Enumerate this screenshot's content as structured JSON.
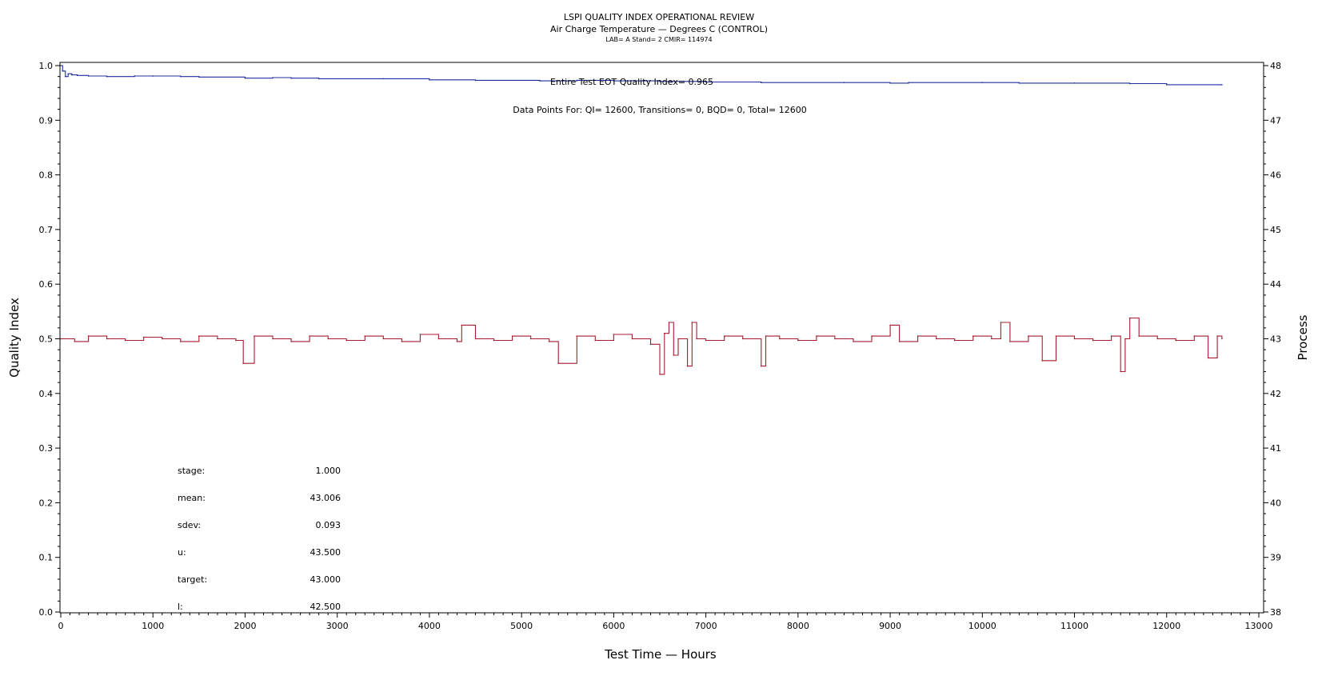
{
  "chart_data": {
    "type": "line",
    "title": "LSPI QUALITY INDEX OPERATIONAL REVIEW",
    "subtitle": "Air Charge Temperature — Degrees C (CONTROL)",
    "subtitle2": "LAB= A Stand= 2 CMIR= 114974",
    "xlabel": "Test Time — Hours",
    "ylabel": "Quality Index",
    "y2label": "Process",
    "xlim": [
      0,
      13000
    ],
    "ylim": [
      0.0,
      1.0
    ],
    "y2lim": [
      38,
      48
    ],
    "x_ticks": [
      "0",
      "1000",
      "2000",
      "3000",
      "4000",
      "5000",
      "6000",
      "7000",
      "8000",
      "9000",
      "10000",
      "11000",
      "12000",
      "13000"
    ],
    "y_ticks": [
      "0.0",
      "0.1",
      "0.2",
      "0.3",
      "0.4",
      "0.5",
      "0.6",
      "0.7",
      "0.8",
      "0.9",
      "1.0"
    ],
    "y2_ticks": [
      "38",
      "39",
      "40",
      "41",
      "42",
      "43",
      "44",
      "45",
      "46",
      "47",
      "48"
    ],
    "annotations": {
      "eot": "Entire Test EOT Quality Index=   0.965",
      "points": "Data Points For: QI= 12600, Transitions=      0, BQD=      0, Total= 12600"
    },
    "stats": [
      {
        "label": "stage:",
        "value": "1.000"
      },
      {
        "label": "mean:",
        "value": "43.006"
      },
      {
        "label": "sdev:",
        "value": "0.093"
      },
      {
        "label": "u:",
        "value": "43.500"
      },
      {
        "label": "target:",
        "value": "43.000"
      },
      {
        "label": "l:",
        "value": "42.500"
      }
    ],
    "series": [
      {
        "axis": "left",
        "color": "#1f2f9e",
        "x": [
          0,
          20,
          50,
          80,
          120,
          180,
          300,
          500,
          800,
          1000,
          1300,
          1500,
          2000,
          2300,
          2500,
          2800,
          3500,
          4000,
          4500,
          5200,
          5600,
          6000,
          6500,
          7000,
          7600,
          8500,
          9000,
          9200,
          10000,
          10400,
          11000,
          11600,
          12000,
          12600
        ],
        "values": [
          1.0,
          0.99,
          0.98,
          0.985,
          0.983,
          0.982,
          0.981,
          0.98,
          0.981,
          0.981,
          0.98,
          0.979,
          0.977,
          0.978,
          0.977,
          0.976,
          0.976,
          0.974,
          0.973,
          0.972,
          0.973,
          0.972,
          0.971,
          0.97,
          0.969,
          0.969,
          0.968,
          0.969,
          0.969,
          0.968,
          0.968,
          0.967,
          0.965,
          0.965
        ]
      },
      {
        "axis": "right",
        "color": "#a51c30",
        "x": [
          0,
          150,
          300,
          500,
          700,
          900,
          1100,
          1300,
          1500,
          1700,
          1900,
          1980,
          2100,
          2300,
          2500,
          2700,
          2900,
          3100,
          3300,
          3500,
          3700,
          3900,
          4100,
          4300,
          4350,
          4500,
          4700,
          4900,
          5100,
          5300,
          5400,
          5600,
          5800,
          6000,
          6200,
          6400,
          6500,
          6550,
          6600,
          6650,
          6700,
          6800,
          6850,
          6900,
          7000,
          7200,
          7400,
          7600,
          7650,
          7800,
          8000,
          8200,
          8400,
          8600,
          8800,
          9000,
          9100,
          9300,
          9500,
          9700,
          9900,
          10100,
          10200,
          10300,
          10500,
          10650,
          10800,
          11000,
          11200,
          11400,
          11500,
          11550,
          11600,
          11700,
          11900,
          12100,
          12300,
          12450,
          12550,
          12600
        ],
        "values": [
          43.0,
          42.95,
          43.05,
          43.0,
          42.97,
          43.03,
          43.0,
          42.95,
          43.05,
          43.0,
          42.97,
          42.55,
          43.05,
          43.0,
          42.95,
          43.05,
          43.0,
          42.97,
          43.05,
          43.0,
          42.95,
          43.08,
          43.0,
          42.95,
          43.25,
          43.0,
          42.97,
          43.05,
          43.0,
          42.95,
          42.55,
          43.05,
          42.97,
          43.08,
          43.0,
          42.9,
          42.35,
          43.1,
          43.3,
          42.7,
          43.0,
          42.5,
          43.3,
          43.0,
          42.97,
          43.05,
          43.0,
          42.5,
          43.05,
          43.0,
          42.97,
          43.05,
          43.0,
          42.95,
          43.05,
          43.25,
          42.95,
          43.05,
          43.0,
          42.97,
          43.05,
          43.0,
          43.3,
          42.95,
          43.05,
          42.6,
          43.05,
          43.0,
          42.97,
          43.05,
          42.4,
          43.0,
          43.38,
          43.05,
          43.0,
          42.97,
          43.05,
          42.65,
          43.05,
          43.0
        ]
      }
    ]
  }
}
